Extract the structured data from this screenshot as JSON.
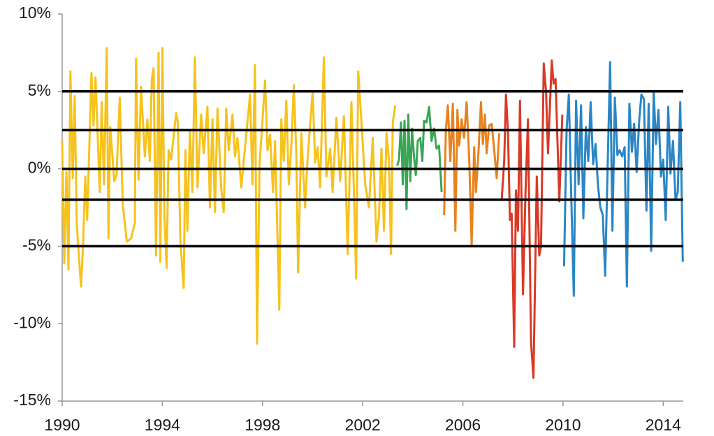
{
  "chart_data": {
    "type": "line",
    "xlim": [
      1990,
      2014.8
    ],
    "xticks": [
      1990,
      1994,
      1998,
      2002,
      2006,
      2010,
      2014
    ],
    "ylim": [
      -15,
      10
    ],
    "yticks": [
      {
        "value": -15,
        "label": "-15%"
      },
      {
        "value": -10,
        "label": "-10%"
      },
      {
        "value": -5,
        "label": "-5%"
      },
      {
        "value": 0,
        "label": "0%"
      },
      {
        "value": 5,
        "label": "5%"
      },
      {
        "value": 10,
        "label": "10%"
      }
    ],
    "reference_lines": [
      5,
      2.5,
      0,
      -2,
      -5
    ],
    "reference_color": "#000000",
    "series": [
      {
        "color": "#f6c21c",
        "x": [
          1990.0,
          1990.08,
          1990.17,
          1990.25,
          1990.33,
          1990.42,
          1990.5,
          1990.58,
          1990.75,
          1990.83,
          1990.92,
          1991.0,
          1991.17,
          1991.25,
          1991.33,
          1991.5,
          1991.58,
          1991.67,
          1991.78,
          1991.85,
          1991.92,
          1992.08,
          1992.17,
          1992.3,
          1992.42,
          1992.58,
          1992.75,
          1992.9,
          1992.95,
          1993.05,
          1993.15,
          1993.3,
          1993.4,
          1993.5,
          1993.58,
          1993.65,
          1993.75,
          1993.85,
          1993.92,
          1994.0,
          1994.08,
          1994.17,
          1994.25,
          1994.35,
          1994.55,
          1994.62,
          1994.72,
          1994.85,
          1994.92,
          1995.0,
          1995.1,
          1995.2,
          1995.3,
          1995.4,
          1995.55,
          1995.65,
          1995.8,
          1995.9,
          1996.0,
          1996.1,
          1996.2,
          1996.35,
          1996.45,
          1996.55,
          1996.65,
          1996.8,
          1996.9,
          1997.0,
          1997.15,
          1997.35,
          1997.5,
          1997.6,
          1997.7,
          1997.78,
          1997.88,
          1998.0,
          1998.1,
          1998.2,
          1998.3,
          1998.42,
          1998.5,
          1998.67,
          1998.75,
          1998.85,
          1998.95,
          1999.05,
          1999.15,
          1999.25,
          1999.35,
          1999.42,
          1999.55,
          1999.7,
          1999.8,
          2000.0,
          2000.1,
          2000.2,
          2000.3,
          2000.45,
          2000.55,
          2000.7,
          2000.8,
          2000.95,
          2001.1,
          2001.25,
          2001.4,
          2001.55,
          2001.65,
          2001.74,
          2001.82,
          2001.95,
          2002.1,
          2002.25,
          2002.4,
          2002.55,
          2002.65,
          2002.75,
          2002.85,
          2002.95,
          2003.05,
          2003.13,
          2003.2,
          2003.3
        ],
        "values": [
          1.8,
          -6.1,
          -0.2,
          -6.5,
          6.3,
          -0.6,
          4.7,
          -3.5,
          -7.6,
          -5.0,
          -0.5,
          -3.3,
          6.2,
          2.8,
          5.9,
          -1.5,
          4.3,
          -1.0,
          7.8,
          -4.5,
          2.7,
          -0.8,
          -0.4,
          4.6,
          -2.3,
          -4.7,
          -4.5,
          -3.5,
          7.1,
          -0.7,
          5.3,
          0.8,
          3.2,
          0.5,
          5.8,
          6.5,
          -5.6,
          7.5,
          -6.0,
          7.8,
          -3.0,
          -6.4,
          1.2,
          0.6,
          3.6,
          3.0,
          -4.7,
          -7.7,
          1.2,
          -4.0,
          2.5,
          -1.5,
          7.2,
          -1.2,
          3.5,
          1.0,
          4.0,
          -2.5,
          3.2,
          -2.8,
          3.9,
          -1.2,
          -2.8,
          3.9,
          1.2,
          3.5,
          0.8,
          2.0,
          -1.2,
          2.2,
          4.8,
          -1.0,
          6.7,
          -11.3,
          0.3,
          3.2,
          5.7,
          1.2,
          2.2,
          -1.5,
          1.8,
          -9.1,
          3.2,
          0.5,
          4.4,
          -1.0,
          1.5,
          5.4,
          0.9,
          -6.7,
          2.3,
          -2.5,
          0.7,
          5.0,
          0.4,
          1.4,
          -1.2,
          7.2,
          -0.5,
          1.3,
          -1.5,
          3.3,
          -0.8,
          3.4,
          -5.5,
          4.3,
          -1.5,
          -7.1,
          6.3,
          3.0,
          -1.0,
          -2.5,
          2.0,
          -4.7,
          -3.0,
          1.3,
          -4.0,
          2.3,
          0.5,
          -5.5,
          3.0,
          4.1
        ]
      },
      {
        "color": "#3aa655",
        "x": [
          2003.38,
          2003.45,
          2003.53,
          2003.6,
          2003.67,
          2003.75,
          2003.82,
          2003.9,
          2003.97,
          2004.05,
          2004.12,
          2004.2,
          2004.3,
          2004.38,
          2004.45,
          2004.55,
          2004.65,
          2004.75,
          2004.85,
          2004.95,
          2005.05,
          2005.15
        ],
        "values": [
          0.2,
          0.6,
          3.0,
          -1.0,
          3.1,
          -2.6,
          3.5,
          -0.8,
          2.6,
          0.8,
          -0.4,
          1.8,
          2.0,
          0.5,
          3.1,
          3.0,
          4.0,
          1.8,
          2.6,
          1.3,
          1.5,
          -1.5
        ]
      },
      {
        "color": "#e8821e",
        "x": [
          2005.25,
          2005.32,
          2005.4,
          2005.5,
          2005.6,
          2005.7,
          2005.78,
          2005.85,
          2005.95,
          2006.05,
          2006.15,
          2006.25,
          2006.35,
          2006.45,
          2006.52,
          2006.62,
          2006.72,
          2006.8,
          2006.88,
          2006.95,
          2007.05,
          2007.15,
          2007.25,
          2007.35,
          2007.45
        ],
        "values": [
          -3.0,
          2.5,
          4.1,
          0.5,
          4.2,
          -4.0,
          3.8,
          1.5,
          3.2,
          2.0,
          4.3,
          0.8,
          -4.9,
          1.4,
          -1.5,
          1.0,
          4.3,
          1.6,
          3.5,
          1.0,
          2.8,
          2.9,
          1.2,
          -0.6,
          2.3
        ]
      },
      {
        "color": "#d93a26",
        "x": [
          2007.55,
          2007.65,
          2007.72,
          2007.8,
          2007.88,
          2007.95,
          2008.05,
          2008.12,
          2008.2,
          2008.28,
          2008.4,
          2008.5,
          2008.6,
          2008.72,
          2008.82,
          2008.95,
          2009.05,
          2009.12,
          2009.23,
          2009.32,
          2009.4,
          2009.55,
          2009.62,
          2009.7,
          2009.85,
          2009.97
        ],
        "values": [
          -2.0,
          0.5,
          4.8,
          2.4,
          -3.3,
          -2.9,
          -11.5,
          -1.4,
          -4.0,
          4.4,
          -8.1,
          -1.5,
          3.2,
          -11.2,
          -13.5,
          -0.5,
          -5.6,
          -5.0,
          6.8,
          5.0,
          1.0,
          7.0,
          5.5,
          5.8,
          -2.1,
          3.5
        ]
      },
      {
        "color": "#2a86c5",
        "x": [
          2010.04,
          2010.14,
          2010.23,
          2010.33,
          2010.43,
          2010.52,
          2010.62,
          2010.72,
          2010.81,
          2010.91,
          2011.01,
          2011.1,
          2011.2,
          2011.3,
          2011.39,
          2011.49,
          2011.59,
          2011.68,
          2011.78,
          2011.88,
          2011.97,
          2012.07,
          2012.17,
          2012.26,
          2012.36,
          2012.46,
          2012.55,
          2012.65,
          2012.75,
          2012.84,
          2012.94,
          2013.04,
          2013.13,
          2013.23,
          2013.33,
          2013.42,
          2013.52,
          2013.62,
          2013.71,
          2013.81,
          2013.91,
          2014.0,
          2014.1,
          2014.2,
          2014.29,
          2014.39,
          2014.49,
          2014.58,
          2014.68,
          2014.78
        ],
        "values": [
          -6.3,
          2.5,
          4.8,
          -2.0,
          -8.2,
          4.4,
          -1.0,
          4.1,
          -3.2,
          2.7,
          0.5,
          4.3,
          0.3,
          1.6,
          -1.0,
          -2.5,
          -3.0,
          -6.9,
          0.0,
          6.9,
          -4.0,
          4.6,
          0.9,
          1.2,
          0.8,
          1.4,
          -7.6,
          4.2,
          1.1,
          2.9,
          -0.2,
          3.1,
          4.8,
          4.5,
          -2.7,
          4.2,
          -5.3,
          5.0,
          1.6,
          3.8,
          -0.5,
          0.6,
          -3.3,
          4.0,
          -0.3,
          1.8,
          -2.0,
          -1.5,
          4.3,
          -6.0
        ]
      }
    ]
  }
}
